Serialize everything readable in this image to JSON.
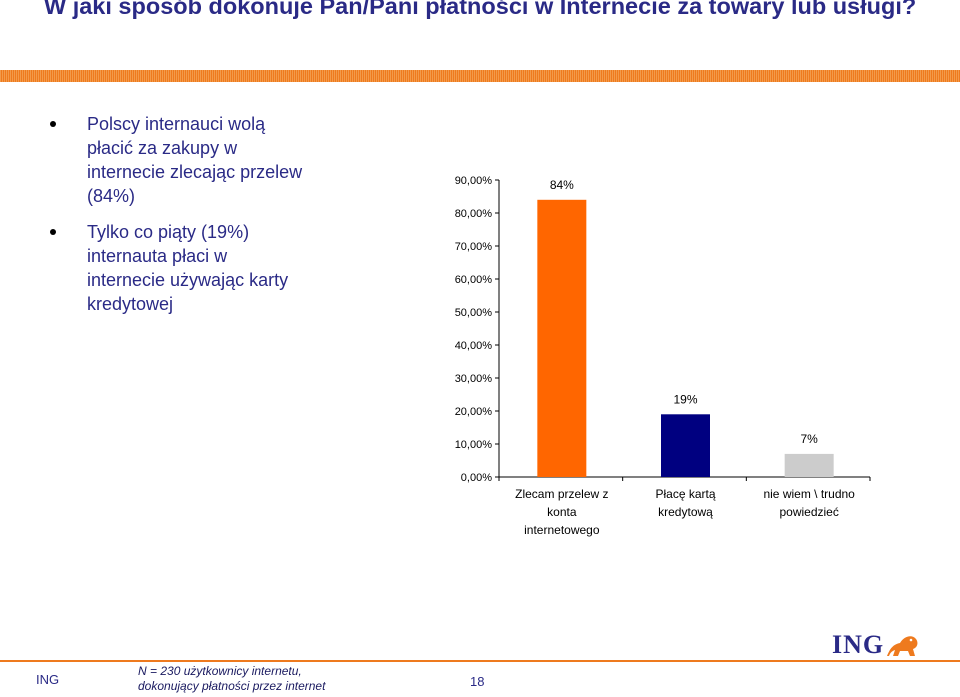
{
  "slide": {
    "title": "W jaki sposób dokonuje Pan/Pani płatności w Internecie za towary lub usługi?",
    "bullets": [
      "Polscy internauci wolą płacić za zakupy w internecie zlecając przelew (84%)",
      "Tylko co piąty (19%) internauta płaci w internecie używając karty kredytowej"
    ]
  },
  "footer": {
    "brand": "ING",
    "note_line1": "N = 230 użytkownicy internetu,",
    "note_line2": "dokonujący płatności przez internet",
    "page": "18",
    "logo": "ING"
  },
  "colors": {
    "brand_orange": "#ee7a1e",
    "text_blue": "#2a2a86"
  },
  "chart_data": {
    "type": "bar",
    "categories": [
      [
        "Zlecam przelew z",
        "konta",
        "internetowego"
      ],
      [
        "Płacę kartą",
        "kredytową"
      ],
      [
        "nie wiem \\ trudno",
        "powiedzieć"
      ]
    ],
    "values": [
      84,
      19,
      7
    ],
    "data_labels": [
      "84%",
      "19%",
      "7%"
    ],
    "bar_colors": [
      "#ff6600",
      "#000080",
      "#cccccc"
    ],
    "yticks": [
      "0,00%",
      "10,00%",
      "20,00%",
      "30,00%",
      "40,00%",
      "50,00%",
      "60,00%",
      "70,00%",
      "80,00%",
      "90,00%"
    ],
    "ylim": [
      0,
      90
    ],
    "grid": false,
    "legend": "none"
  }
}
